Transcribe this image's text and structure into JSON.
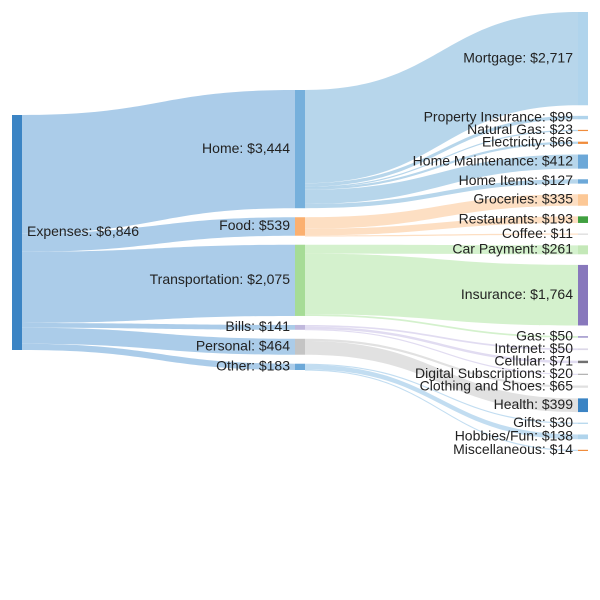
{
  "chart_data": {
    "type": "sankey",
    "title": "",
    "root": {
      "id": "expenses",
      "label": "Expenses: $6,846",
      "value": 6846,
      "color": "#3b84c4"
    },
    "categories": [
      {
        "id": "home",
        "label": "Home: $3,444",
        "value": 3444,
        "color": "#76b0dc"
      },
      {
        "id": "food",
        "label": "Food: $539",
        "value": 539,
        "color": "#fbb070"
      },
      {
        "id": "transportation",
        "label": "Transportation: $2,075",
        "value": 2075,
        "color": "#a6dc96"
      },
      {
        "id": "bills",
        "label": "Bills: $141",
        "value": 141,
        "color": "#c0b8dc"
      },
      {
        "id": "personal",
        "label": "Personal: $464",
        "value": 464,
        "color": "#c4c4c4"
      },
      {
        "id": "other",
        "label": "Other: $183",
        "value": 183,
        "color": "#6ca8d8"
      }
    ],
    "items": [
      {
        "id": "mortgage",
        "parent": "home",
        "label": "Mortgage: $2,717",
        "value": 2717,
        "color": "#b0d4ec"
      },
      {
        "id": "property-insurance",
        "parent": "home",
        "label": "Property Insurance: $99",
        "value": 99,
        "color": "#b0d4ec"
      },
      {
        "id": "natural-gas",
        "parent": "home",
        "label": "Natural Gas: $23",
        "value": 23,
        "color": "#f08c3c"
      },
      {
        "id": "electricity",
        "parent": "home",
        "label": "Electricity: $66",
        "value": 66,
        "color": "#f08c3c"
      },
      {
        "id": "home-maintenance",
        "parent": "home",
        "label": "Home Maintenance: $412",
        "value": 412,
        "color": "#6ca8d8"
      },
      {
        "id": "home-items",
        "parent": "home",
        "label": "Home Items: $127",
        "value": 127,
        "color": "#6ca8d8"
      },
      {
        "id": "groceries",
        "parent": "food",
        "label": "Groceries: $335",
        "value": 335,
        "color": "#fcc896"
      },
      {
        "id": "restaurants",
        "parent": "food",
        "label": "Restaurants: $193",
        "value": 193,
        "color": "#40a040"
      },
      {
        "id": "coffee",
        "parent": "food",
        "label": "Coffee: $11",
        "value": 11,
        "color": "#d8d8d8"
      },
      {
        "id": "car-payment",
        "parent": "transportation",
        "label": "Car Payment: $261",
        "value": 261,
        "color": "#c4e8b8"
      },
      {
        "id": "insurance",
        "parent": "transportation",
        "label": "Insurance: $1,764",
        "value": 1764,
        "color": "#8878bc"
      },
      {
        "id": "gas",
        "parent": "transportation",
        "label": "Gas: $50",
        "value": 50,
        "color": "#a8a0d0"
      },
      {
        "id": "internet",
        "parent": "bills",
        "label": "Internet: $50",
        "value": 50,
        "color": "#dcd8e8"
      },
      {
        "id": "cellular",
        "parent": "bills",
        "label": "Cellular: $71",
        "value": 71,
        "color": "#707070"
      },
      {
        "id": "digital-subscriptions",
        "parent": "bills",
        "label": "Digital Subscriptions: $20",
        "value": 20,
        "color": "#b0b0b0"
      },
      {
        "id": "clothing-and-shoes",
        "parent": "personal",
        "label": "Clothing and Shoes: $65",
        "value": 65,
        "color": "#e0e0e0"
      },
      {
        "id": "health",
        "parent": "personal",
        "label": "Health: $399",
        "value": 399,
        "color": "#3b84c4"
      },
      {
        "id": "gifts",
        "parent": "other",
        "label": "Gifts: $30",
        "value": 30,
        "color": "#b0d4ec"
      },
      {
        "id": "hobbies-fun",
        "parent": "other",
        "label": "Hobbies/Fun: $138",
        "value": 138,
        "color": "#b0d4ec"
      },
      {
        "id": "miscellaneous",
        "parent": "other",
        "label": "Miscellaneous: $14",
        "value": 14,
        "color": "#f08c3c"
      }
    ],
    "category_flow_colors": {
      "home": "#aacfe8",
      "food": "#fdd9b8",
      "transportation": "#cdeec4",
      "bills": "#dcd6ee",
      "personal": "#dcdcdc",
      "other": "#b7d7ee"
    }
  }
}
